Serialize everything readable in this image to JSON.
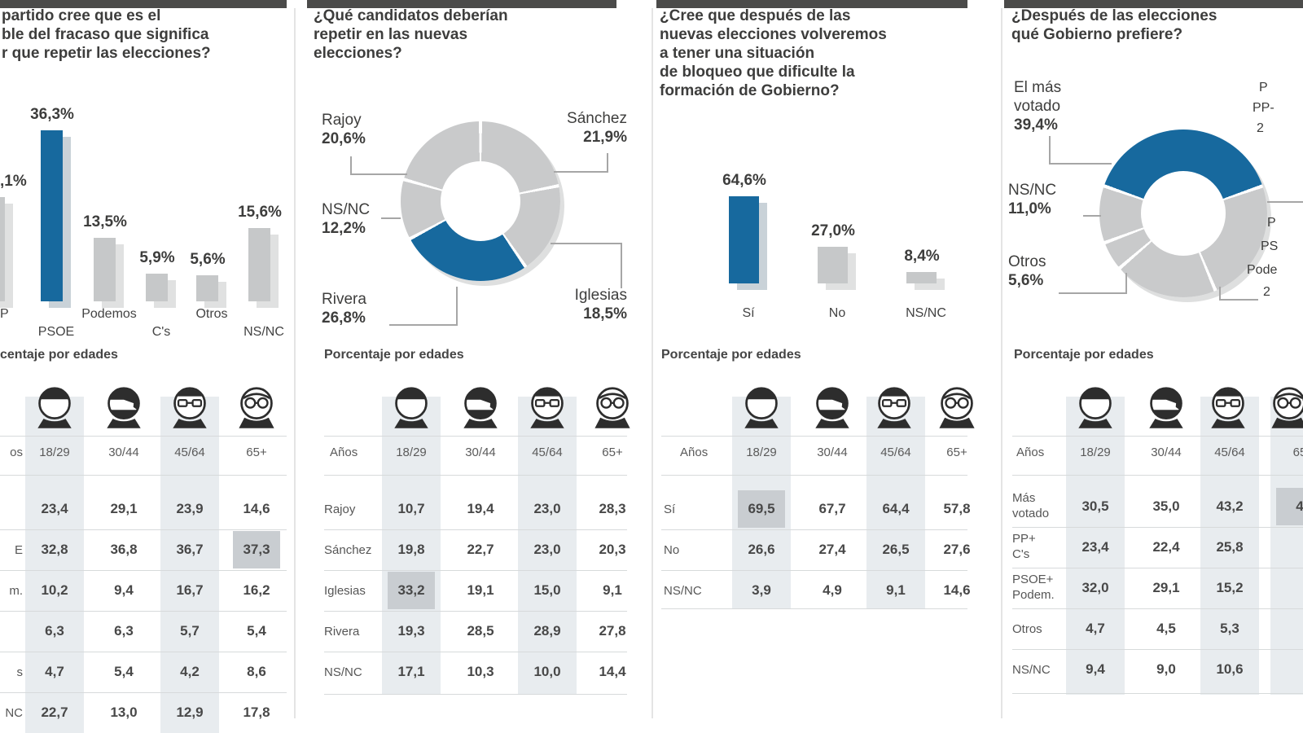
{
  "top_bar_color": "#4b4b4a",
  "accent_blue": "#17699e",
  "age_icons": [
    "young-man",
    "bearded-man",
    "man-with-glasses",
    "elderly-person"
  ],
  "chart_data": [
    {
      "type": "bar",
      "title_lines": [
        "partido cree que es el",
        "ble del fracaso que significa",
        "r que repetir las elecciones?"
      ],
      "bars": [
        {
          "axis_label": "P",
          "value_label": ",1%",
          "value_est": 22.1,
          "color": "gray",
          "clipped_left": true
        },
        {
          "axis_label": "PSOE",
          "value_label": "36,3%",
          "value": 36.3,
          "color": "blue"
        },
        {
          "axis_label": "Podemos",
          "value_label": "13,5%",
          "value": 13.5,
          "color": "gray"
        },
        {
          "axis_label": "C's",
          "value_label": "5,9%",
          "value": 5.9,
          "color": "gray"
        },
        {
          "axis_label": "Otros",
          "value_label": "5,6%",
          "value": 5.6,
          "color": "gray"
        },
        {
          "axis_label": "NS/NC",
          "value_label": "15,6%",
          "value": 15.6,
          "color": "gray"
        }
      ],
      "ages_heading": "centaje por edades",
      "age_table": {
        "col_headers": [
          "os",
          "18/29",
          "30/44",
          "45/64",
          "65+"
        ],
        "rows": [
          {
            "label": "",
            "values": [
              "23,4",
              "29,1",
              "23,9",
              "14,6"
            ]
          },
          {
            "label": "E",
            "values": [
              "32,8",
              "36,8",
              "36,7",
              "37,3"
            ]
          },
          {
            "label": "m.",
            "values": [
              "10,2",
              "9,4",
              "16,7",
              "16,2"
            ]
          },
          {
            "label": "",
            "values": [
              "6,3",
              "6,3",
              "5,7",
              "5,4"
            ]
          },
          {
            "label": "s",
            "values": [
              "4,7",
              "5,4",
              "4,2",
              "8,6"
            ]
          },
          {
            "label": "NC",
            "values": [
              "22,7",
              "13,0",
              "12,9",
              "17,8"
            ]
          }
        ],
        "highlight_cell": {
          "row": 1,
          "col": 3
        }
      }
    },
    {
      "type": "pie",
      "donut": true,
      "title_lines": [
        "¿Qué candidatos deberían",
        "repetir en las nuevas",
        "elecciones?"
      ],
      "segments": [
        {
          "name": "Sánchez",
          "pct": 21.9,
          "color": "gray"
        },
        {
          "name": "Iglesias",
          "pct": 18.5,
          "color": "gray"
        },
        {
          "name": "Rivera",
          "pct": 26.8,
          "color": "blue"
        },
        {
          "name": "NS/NC",
          "pct": 12.2,
          "color": "gray"
        },
        {
          "name": "Rajoy",
          "pct": 20.6,
          "color": "gray"
        }
      ],
      "start_deg": 0,
      "callouts": {
        "rajoy": {
          "name": "Rajoy",
          "pct_label": "20,6%"
        },
        "sanchez": {
          "name": "Sánchez",
          "pct_label": "21,9%"
        },
        "nsnc": {
          "name": "NS/NC",
          "pct_label": "12,2%"
        },
        "rivera": {
          "name": "Rivera",
          "pct_label": "26,8%"
        },
        "iglesias": {
          "name": "Iglesias",
          "pct_label": "18,5%"
        }
      },
      "ages_heading": "Porcentaje por edades",
      "age_table": {
        "col_headers": [
          "Años",
          "18/29",
          "30/44",
          "45/64",
          "65+"
        ],
        "rows": [
          {
            "label": "Rajoy",
            "values": [
              "10,7",
              "19,4",
              "23,0",
              "28,3"
            ]
          },
          {
            "label": "Sánchez",
            "values": [
              "19,8",
              "22,7",
              "23,0",
              "20,3"
            ]
          },
          {
            "label": "Iglesias",
            "values": [
              "33,2",
              "19,1",
              "15,0",
              "9,1"
            ]
          },
          {
            "label": "Rivera",
            "values": [
              "19,3",
              "28,5",
              "28,9",
              "27,8"
            ]
          },
          {
            "label": "NS/NC",
            "values": [
              "17,1",
              "10,3",
              "10,0",
              "14,4"
            ]
          }
        ],
        "highlight_cell": {
          "row": 2,
          "col": 0
        }
      }
    },
    {
      "type": "bar",
      "title_lines": [
        "¿Cree que después de las",
        "nuevas elecciones volveremos",
        "a tener una situación",
        "de bloqueo que dificulte la",
        "formación de Gobierno?"
      ],
      "bars": [
        {
          "axis_label": "Sí",
          "value_label": "64,6%",
          "value": 64.6,
          "color": "blue"
        },
        {
          "axis_label": "No",
          "value_label": "27,0%",
          "value": 27.0,
          "color": "gray"
        },
        {
          "axis_label": "NS/NC",
          "value_label": "8,4%",
          "value": 8.4,
          "color": "gray"
        }
      ],
      "ages_heading": "Porcentaje por edades",
      "age_table": {
        "col_headers": [
          "Años",
          "18/29",
          "30/44",
          "45/64",
          "65+"
        ],
        "rows": [
          {
            "label": "Sí",
            "values": [
              "69,5",
              "67,7",
              "64,4",
              "57,8"
            ]
          },
          {
            "label": "No",
            "values": [
              "26,6",
              "27,4",
              "26,5",
              "27,6"
            ]
          },
          {
            "label": "NS/NC",
            "values": [
              "3,9",
              "4,9",
              "9,1",
              "14,6"
            ]
          }
        ],
        "highlight_cell": {
          "row": 0,
          "col": 0
        }
      }
    },
    {
      "type": "pie",
      "donut": true,
      "title_lines": [
        "¿Después de las elecciones",
        "qué Gobierno prefiere?"
      ],
      "segments": [
        {
          "name": "El más votado",
          "pct": 39.4,
          "color": "blue"
        },
        {
          "name": "",
          "pct": null,
          "pct_arc_est": 24.0,
          "color": "gray",
          "note": "label cut at right edge"
        },
        {
          "name": "",
          "pct": null,
          "pct_arc_est": 20.0,
          "color": "gray",
          "note": "label cut at right edge"
        },
        {
          "name": "Otros",
          "pct": 5.6,
          "color": "gray"
        },
        {
          "name": "NS/NC",
          "pct": 11.0,
          "color": "gray"
        }
      ],
      "start_deg": 289.1,
      "callouts": {
        "mas_votado": {
          "lines": [
            "El más",
            "votado",
            "39,4%"
          ]
        },
        "nsnc": {
          "name": "NS/NC",
          "pct_label": "11,0%"
        },
        "otros": {
          "name": "Otros",
          "pct_label": "5,6%"
        },
        "right_top": {
          "lines": [
            "P",
            "PP-",
            "2"
          ]
        },
        "right_bottom": {
          "lines": [
            "P",
            "PS",
            "Pode",
            "2"
          ]
        }
      },
      "ages_heading": "Porcentaje por edades",
      "age_table": {
        "col_headers": [
          "Años",
          "18/29",
          "30/44",
          "45/64",
          "65"
        ],
        "rows": [
          {
            "label_lines": [
              "Más",
              "votado"
            ],
            "values": [
              "30,5",
              "35,0",
              "43,2",
              "4"
            ]
          },
          {
            "label_lines": [
              "PP+",
              "C's"
            ],
            "values": [
              "23,4",
              "22,4",
              "25,8",
              ""
            ]
          },
          {
            "label_lines": [
              "PSOE+",
              "Podem."
            ],
            "values": [
              "32,0",
              "29,1",
              "15,2",
              ""
            ]
          },
          {
            "label_lines": [
              "Otros"
            ],
            "values": [
              "4,7",
              "4,5",
              "5,3",
              ""
            ]
          },
          {
            "label_lines": [
              "NS/NC"
            ],
            "values": [
              "9,4",
              "9,0",
              "10,6",
              ""
            ]
          }
        ],
        "highlight_cell": {
          "row": 0,
          "col": 3
        }
      }
    }
  ]
}
